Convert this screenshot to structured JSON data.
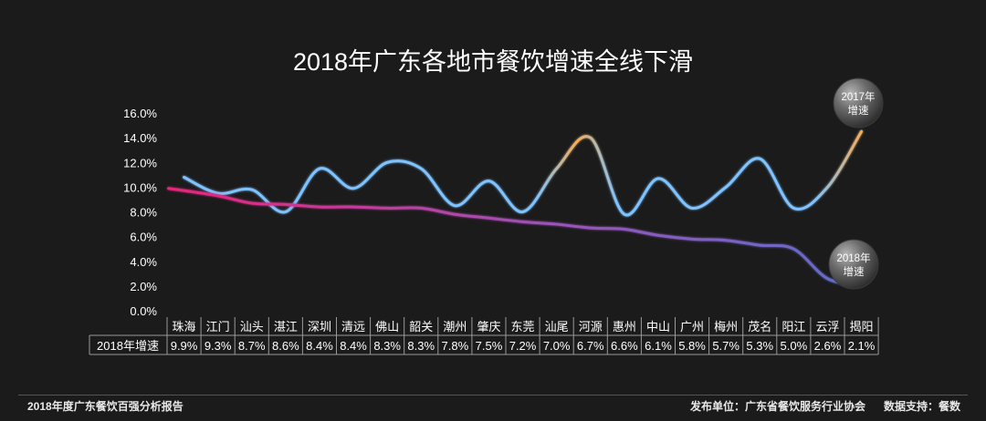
{
  "title": "2018年广东各地市餐饮增速全线下滑",
  "footer": {
    "left": "2018年度广东餐饮百强分析报告",
    "publisher": "发布单位：广东省餐饮服务行业协会",
    "data_support": "数据支持：餐数"
  },
  "colors": {
    "background": "#1b1b1b",
    "line_2018_start": "#e8257c",
    "line_2018_end": "#5f6fc9",
    "line_2017": "#7ec3ff",
    "line_2017_peak": "#f4ad5a"
  },
  "chart_data": {
    "type": "line",
    "title": "2018年广东各地市餐饮增速全线下滑",
    "categories": [
      "珠海",
      "江门",
      "汕头",
      "湛江",
      "深圳",
      "清远",
      "佛山",
      "韶关",
      "潮州",
      "肇庆",
      "东莞",
      "汕尾",
      "河源",
      "惠州",
      "中山",
      "广州",
      "梅州",
      "茂名",
      "阳江",
      "云浮",
      "揭阳"
    ],
    "ylim": [
      0,
      16
    ],
    "yticks": [
      "0.0%",
      "2.0%",
      "4.0%",
      "6.0%",
      "8.0%",
      "10.0%",
      "12.0%",
      "14.0%",
      "16.0%"
    ],
    "series": [
      {
        "name": "2018年增速",
        "values": [
          9.9,
          9.3,
          8.7,
          8.6,
          8.4,
          8.4,
          8.3,
          8.3,
          7.8,
          7.5,
          7.2,
          7.0,
          6.7,
          6.6,
          6.1,
          5.8,
          5.7,
          5.3,
          5.0,
          2.6,
          2.1
        ]
      },
      {
        "name": "2017年增速",
        "values": [
          10.8,
          9.5,
          9.8,
          8.0,
          11.5,
          9.9,
          12.0,
          11.5,
          8.5,
          10.5,
          8.0,
          11.5,
          14.0,
          7.8,
          10.7,
          8.3,
          10.0,
          12.3,
          8.3,
          10.0,
          14.5
        ]
      }
    ],
    "table_row_label": "2018年增速",
    "table_values": [
      "9.9%",
      "9.3%",
      "8.7%",
      "8.6%",
      "8.4%",
      "8.4%",
      "8.3%",
      "8.3%",
      "7.8%",
      "7.5%",
      "7.2%",
      "7.0%",
      "6.7%",
      "6.6%",
      "6.1%",
      "5.8%",
      "5.7%",
      "5.3%",
      "5.0%",
      "2.6%",
      "2.1%"
    ],
    "badge_2017": [
      "2017年",
      "增速"
    ],
    "badge_2018": [
      "2018年",
      "增速"
    ],
    "grid": false,
    "legend": "none"
  }
}
